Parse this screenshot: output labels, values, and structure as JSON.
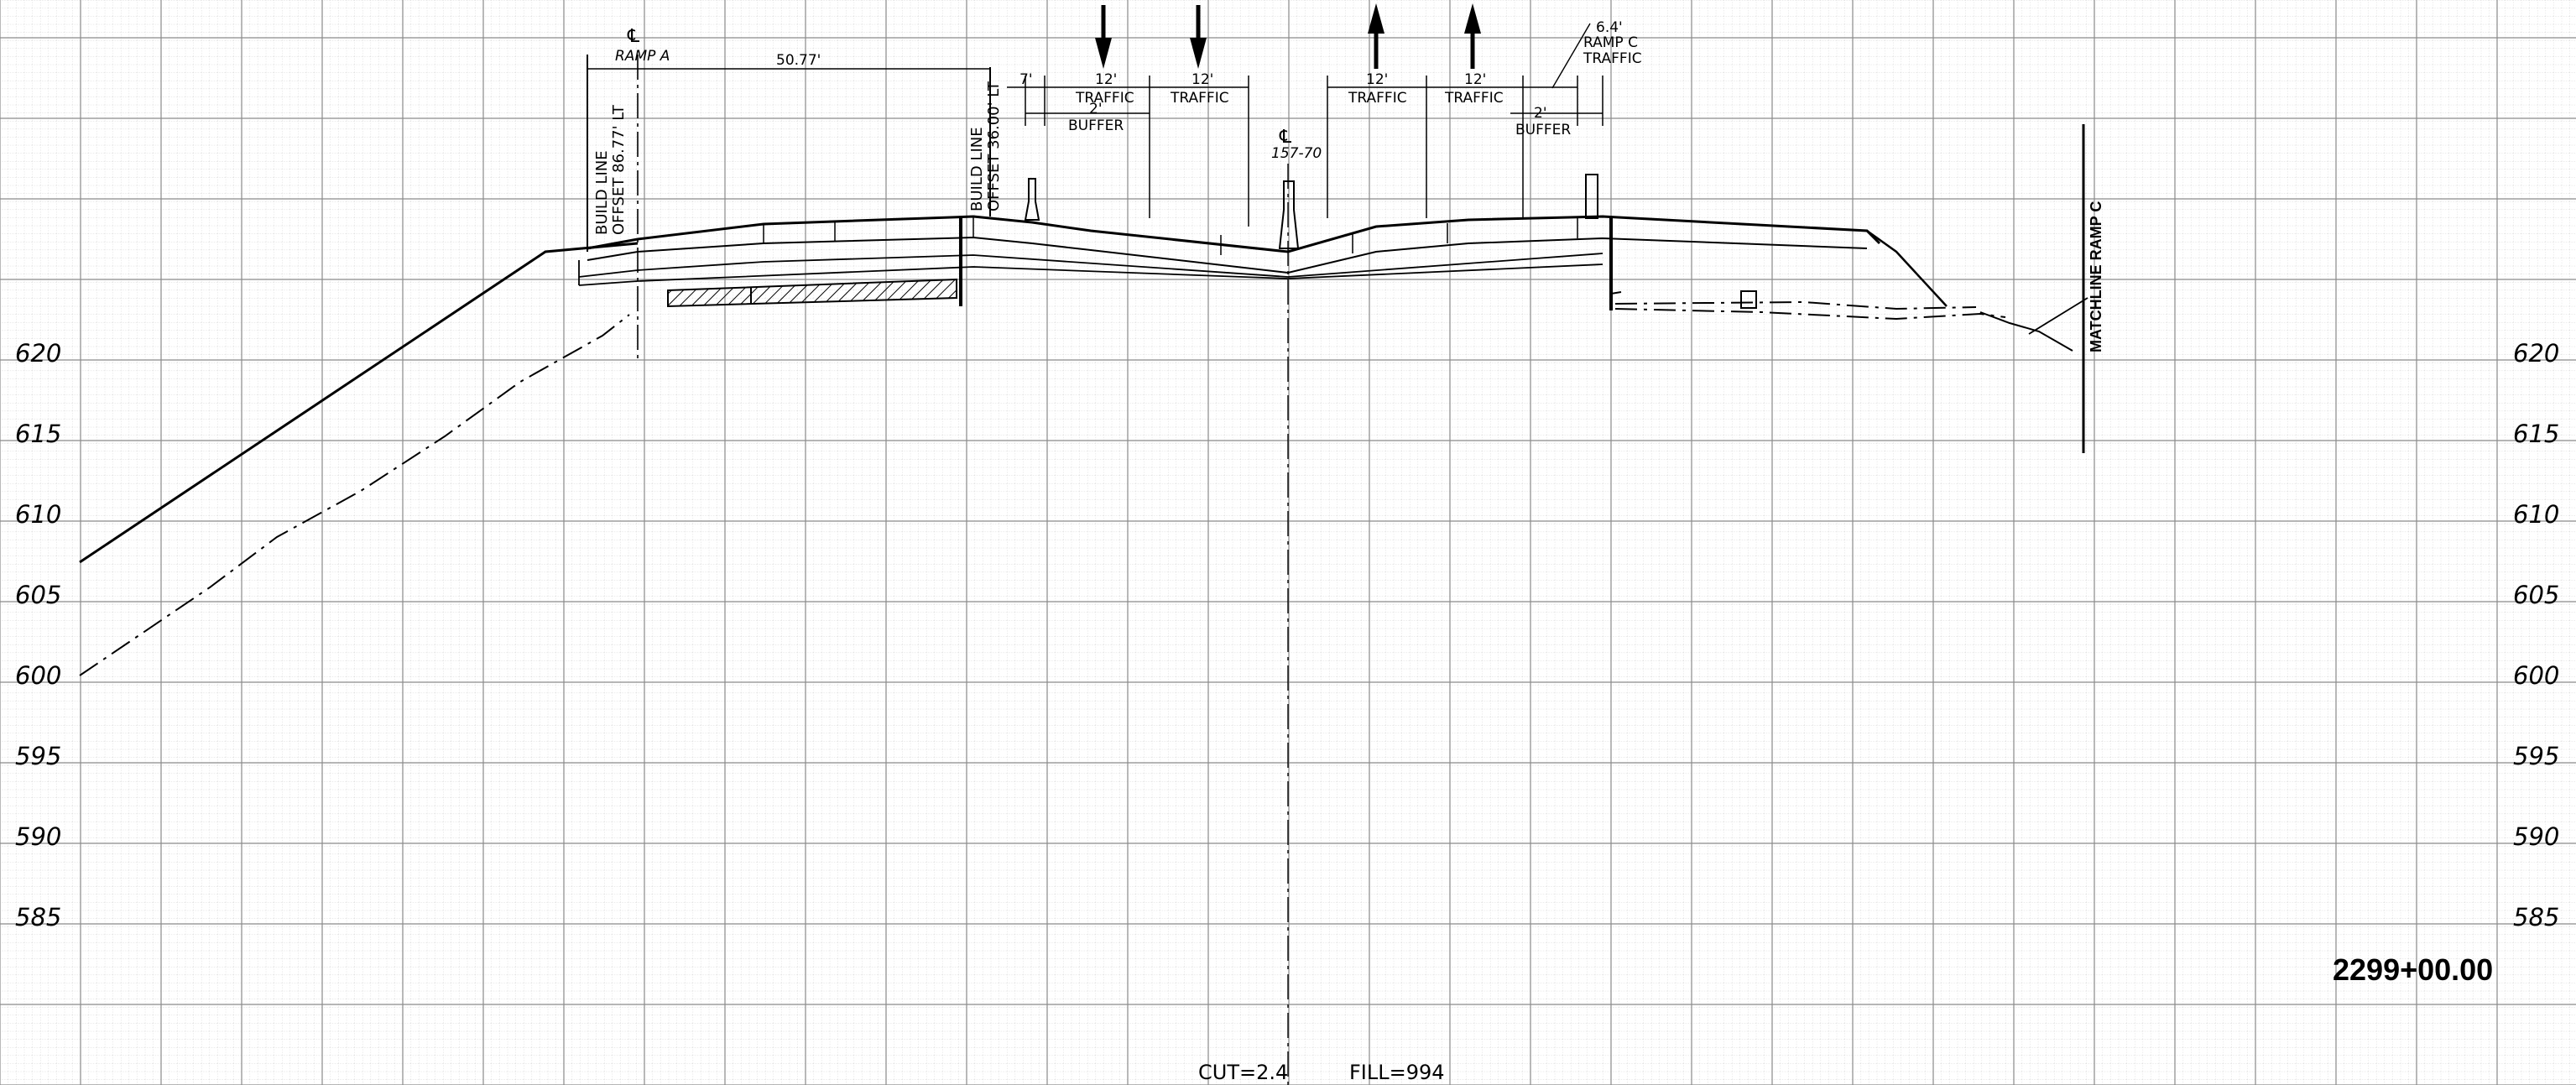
{
  "sheet": {
    "station": "2299+00.00",
    "cut_label": "CUT=2.4",
    "fill_label": "FILL=994"
  },
  "elevations": {
    "left": [
      "620",
      "615",
      "610",
      "605",
      "600",
      "595",
      "590",
      "585"
    ],
    "right": [
      "620",
      "615",
      "610",
      "605",
      "600",
      "595",
      "590",
      "585"
    ]
  },
  "annotations": {
    "ramp_a_cl_symbol": "℄",
    "ramp_a": "RAMP A",
    "offset_dim": "50.77'",
    "build_line_left_1": "BUILD LINE",
    "build_line_left_2": "OFFSET 86.77' LT",
    "build_line_mid_1": "BUILD LINE",
    "build_line_mid_2": "OFFSET 36.00' LT",
    "shoulder_7": "7'",
    "lane1_width": "12'",
    "lane1_label": "TRAFFIC",
    "buffer_left_width": "2'",
    "buffer_left_label": "BUFFER",
    "lane2_width": "12'",
    "lane2_label": "TRAFFIC",
    "center_cl_symbol": "℄",
    "center_station": "157-70",
    "lane3_width": "12'",
    "lane3_label": "TRAFFIC",
    "lane4_width": "12'",
    "lane4_label": "TRAFFIC",
    "ramp_c_width": "6.4'",
    "ramp_c_1": "RAMP C",
    "ramp_c_2": "TRAFFIC",
    "buffer_right_width": "2'",
    "buffer_right_label": "BUFFER",
    "matchline": "MATCHLINE RAMP C"
  },
  "traffic_arrows": [
    "down",
    "down",
    "up",
    "up"
  ]
}
